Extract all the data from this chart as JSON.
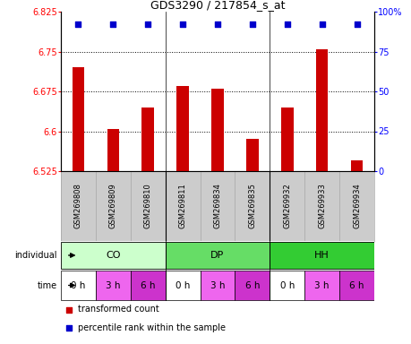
{
  "title": "GDS3290 / 217854_s_at",
  "samples": [
    "GSM269808",
    "GSM269809",
    "GSM269810",
    "GSM269811",
    "GSM269834",
    "GSM269835",
    "GSM269932",
    "GSM269933",
    "GSM269934"
  ],
  "bar_values": [
    6.72,
    6.605,
    6.645,
    6.685,
    6.68,
    6.585,
    6.645,
    6.755,
    6.545
  ],
  "bar_color": "#cc0000",
  "percentile_color": "#0000cc",
  "percentile_rank": 92,
  "ylim_left": [
    6.525,
    6.825
  ],
  "ylim_right": [
    0,
    100
  ],
  "yticks_left": [
    6.525,
    6.6,
    6.675,
    6.75,
    6.825
  ],
  "yticks_right": [
    0,
    25,
    50,
    75,
    100
  ],
  "ytick_labels_left": [
    "6.525",
    "6.6",
    "6.675",
    "6.75",
    "6.825"
  ],
  "ytick_labels_right": [
    "0",
    "25",
    "50",
    "75",
    "100%"
  ],
  "dotted_lines": [
    6.6,
    6.675,
    6.75
  ],
  "individuals": [
    {
      "label": "CO",
      "start": 0,
      "end": 3,
      "color": "#ccffcc"
    },
    {
      "label": "DP",
      "start": 3,
      "end": 6,
      "color": "#66dd66"
    },
    {
      "label": "HH",
      "start": 6,
      "end": 9,
      "color": "#33cc33"
    }
  ],
  "times": [
    "0 h",
    "3 h",
    "6 h",
    "0 h",
    "3 h",
    "6 h",
    "0 h",
    "3 h",
    "6 h"
  ],
  "time_colors": [
    "#ffffff",
    "#ee66ee",
    "#cc33cc",
    "#ffffff",
    "#ee66ee",
    "#cc33cc",
    "#ffffff",
    "#ee66ee",
    "#cc33cc"
  ],
  "legend_bar_label": "transformed count",
  "legend_pct_label": "percentile rank within the sample",
  "individual_label": "individual",
  "time_label": "time",
  "gsm_row_color": "#cccccc",
  "gsm_border_color": "#aaaaaa",
  "group_dividers": [
    2.5,
    5.5
  ]
}
